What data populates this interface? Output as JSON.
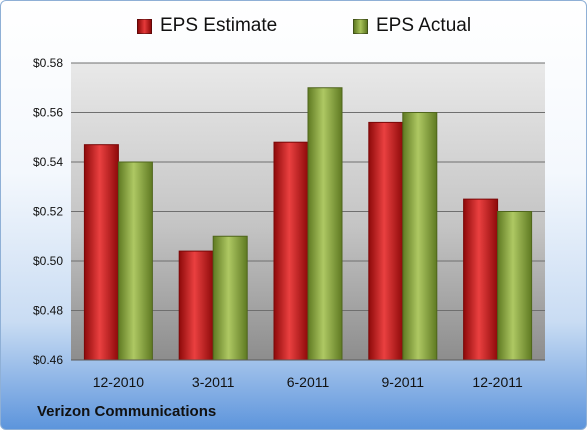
{
  "legend": {
    "estimate_label": "EPS Estimate",
    "actual_label": "EPS Actual"
  },
  "colors": {
    "estimate": "#cc1414",
    "actual": "#8aa63a",
    "grid": "#6f6f6f"
  },
  "footer": {
    "company": "Verizon Communications"
  },
  "chart_data": {
    "type": "bar",
    "categories": [
      "12-2010",
      "3-2011",
      "6-2011",
      "9-2011",
      "12-2011"
    ],
    "series": [
      {
        "name": "EPS Estimate",
        "values": [
          0.547,
          0.504,
          0.548,
          0.556,
          0.525
        ]
      },
      {
        "name": "EPS Actual",
        "values": [
          0.54,
          0.51,
          0.57,
          0.56,
          0.52
        ]
      }
    ],
    "ylim": [
      0.46,
      0.58
    ],
    "yticks": [
      0.46,
      0.48,
      0.5,
      0.52,
      0.54,
      0.56,
      0.58
    ],
    "ytick_labels": [
      "$0.46",
      "$0.48",
      "$0.50",
      "$0.52",
      "$0.54",
      "$0.56",
      "$0.58"
    ],
    "grid": true,
    "legend_position": "top-center"
  }
}
